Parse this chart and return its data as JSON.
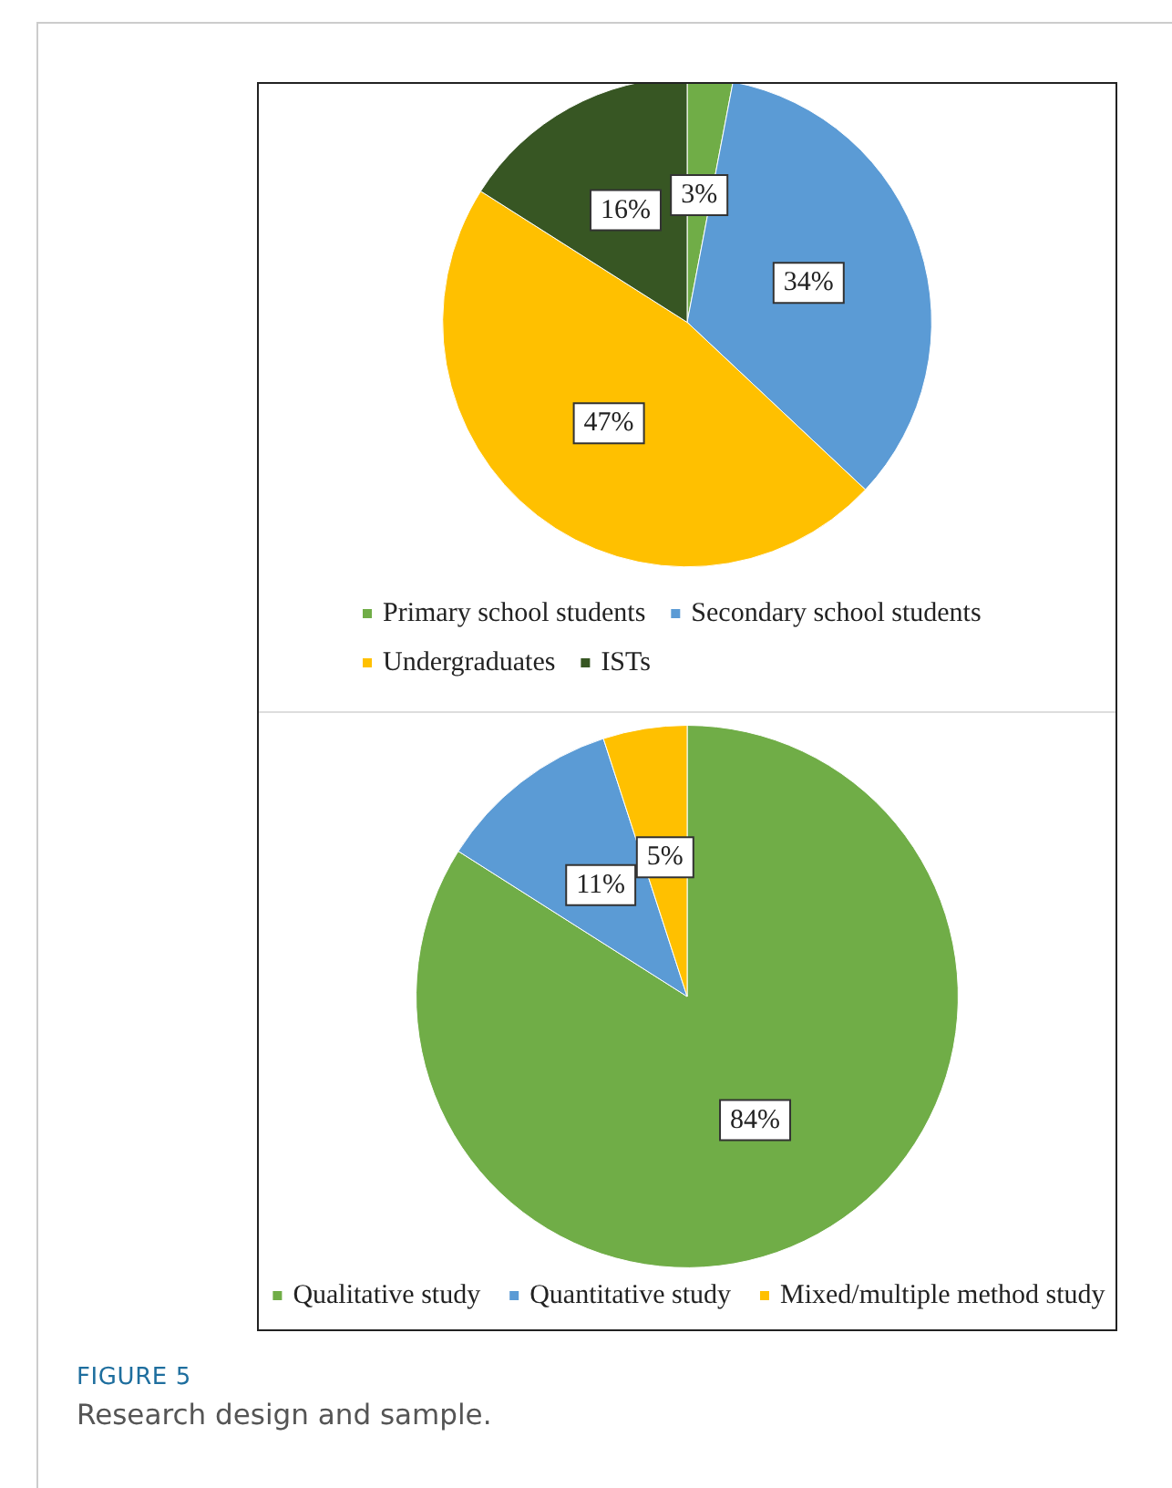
{
  "chart_data": [
    {
      "type": "pie",
      "categories": [
        "Primary school students",
        "Secondary school students",
        "Undergraduates",
        "ISTs"
      ],
      "values": [
        3,
        34,
        47,
        16
      ],
      "colors": [
        "#70ad47",
        "#5b9bd5",
        "#ffc000",
        "#375623"
      ],
      "value_labels": [
        "3%",
        "34%",
        "47%",
        "16%"
      ],
      "legend": "bottom"
    },
    {
      "type": "pie",
      "categories": [
        "Qualitative study",
        "Quantitative study",
        "Mixed/multiple method study"
      ],
      "values": [
        84,
        11,
        5
      ],
      "colors": [
        "#70ad47",
        "#5b9bd5",
        "#ffc000"
      ],
      "value_labels": [
        "84%",
        "11%",
        "5%"
      ],
      "legend": "bottom",
      "annotations": [
        "FIGURE 5",
        "Research design and sample."
      ]
    }
  ]
}
